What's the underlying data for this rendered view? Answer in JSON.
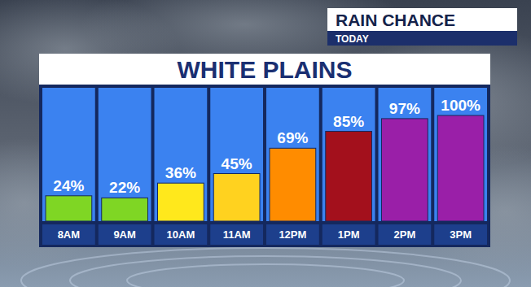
{
  "chart_data": {
    "type": "bar",
    "title": "WHITE PLAINS",
    "annotations": [
      "RAIN CHANCE",
      "TODAY"
    ],
    "categories": [
      "8AM",
      "9AM",
      "10AM",
      "11AM",
      "12PM",
      "1PM",
      "2PM",
      "3PM"
    ],
    "values": [
      24,
      22,
      36,
      45,
      69,
      85,
      97,
      100
    ],
    "value_labels": [
      "24%",
      "22%",
      "36%",
      "45%",
      "69%",
      "85%",
      "97%",
      "100%"
    ],
    "colors": [
      "#7fd624",
      "#7fd624",
      "#ffe81c",
      "#ffd21f",
      "#ff8c00",
      "#a3101c",
      "#9a1fa8",
      "#9a1fa8"
    ],
    "ylim": [
      0,
      100
    ],
    "data_labels": true,
    "tick_labels": false
  }
}
